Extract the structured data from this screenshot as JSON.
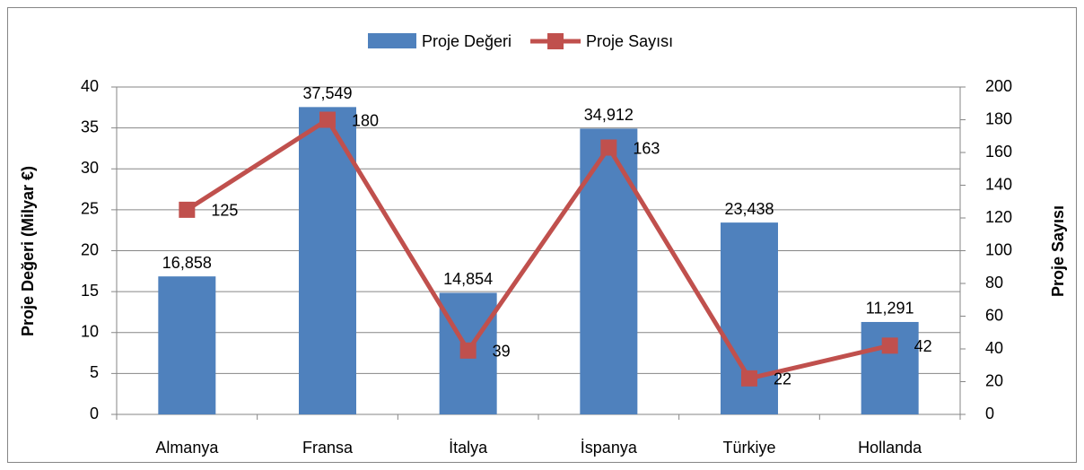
{
  "chart_data": {
    "type": "bar",
    "categories": [
      "Almanya",
      "Fransa",
      "İtalya",
      "İspanya",
      "Türkiye",
      "Hollanda"
    ],
    "series": [
      {
        "name": "Proje Değeri",
        "type": "bar",
        "color": "#4f81bd",
        "values": [
          16.858,
          37.549,
          14.854,
          34.912,
          23.438,
          11.291
        ],
        "value_labels": [
          "16,858",
          "37,549",
          "14,854",
          "34,912",
          "23,438",
          "11,291"
        ]
      },
      {
        "name": "Proje Sayısı",
        "type": "line",
        "axis": "y2",
        "color": "#c0504d",
        "values": [
          125,
          180,
          39,
          163,
          22,
          42
        ]
      }
    ],
    "ylabel": "Proje Değeri (Milyar €)",
    "y2label": "Proje Sayısı",
    "ylim": [
      0,
      40
    ],
    "yticks": [
      0,
      5,
      10,
      15,
      20,
      25,
      30,
      35,
      40
    ],
    "y2lim": [
      0,
      200
    ],
    "y2ticks": [
      0,
      20,
      40,
      60,
      80,
      100,
      120,
      140,
      160,
      180,
      200
    ],
    "grid": true,
    "legend": "top"
  }
}
